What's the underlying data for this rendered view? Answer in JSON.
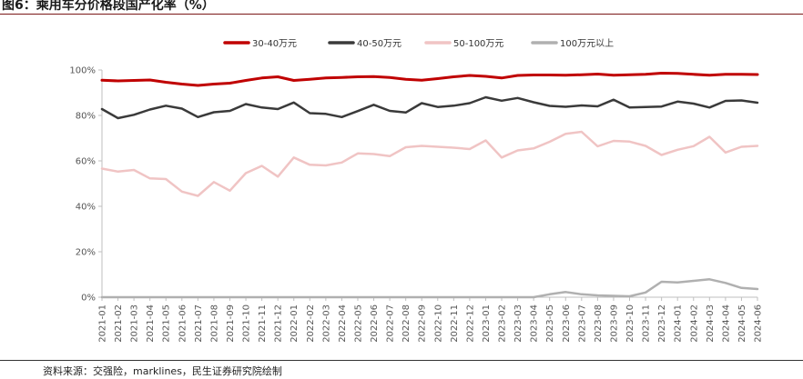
{
  "title": "图6：乘用车分价格段国产化率（%）",
  "source": "资料来源：交强险，marklines，民生证券研究院绘制",
  "chart_data": {
    "type": "line",
    "ylim": [
      0,
      100
    ],
    "yticks": [
      0,
      20,
      40,
      60,
      80,
      100
    ],
    "ytick_labels": [
      "0%",
      "20%",
      "40%",
      "60%",
      "80%",
      "100%"
    ],
    "legend_position": "top",
    "grid": false,
    "x": [
      "2021-01",
      "2021-02",
      "2021-03",
      "2021-04",
      "2021-05",
      "2021-06",
      "2021-07",
      "2021-08",
      "2021-09",
      "2021-10",
      "2021-11",
      "2021-12",
      "2022-01",
      "2022-02",
      "2022-03",
      "2022-04",
      "2022-05",
      "2022-06",
      "2022-07",
      "2022-08",
      "2022-09",
      "2022-10",
      "2022-11",
      "2022-12",
      "2023-01",
      "2023-02",
      "2023-03",
      "2023-04",
      "2023-05",
      "2023-06",
      "2023-07",
      "2023-08",
      "2023-09",
      "2023-10",
      "2023-11",
      "2023-12",
      "2024-01",
      "2024-02",
      "2024-03",
      "2024-04",
      "2024-05",
      "2024-06"
    ],
    "series": [
      {
        "name": "30-40万元",
        "color": "#c00000",
        "width": 3,
        "values": [
          95.5,
          95.2,
          95.4,
          95.6,
          94.6,
          93.8,
          93.2,
          93.8,
          94.2,
          95.4,
          96.5,
          97.0,
          95.4,
          95.9,
          96.5,
          96.7,
          97.0,
          97.1,
          96.7,
          95.9,
          95.5,
          96.2,
          97.0,
          97.6,
          97.2,
          96.5,
          97.6,
          97.8,
          97.8,
          97.7,
          97.9,
          98.2,
          97.7,
          97.9,
          98.1,
          98.6,
          98.5,
          98.1,
          97.7,
          98.1,
          98.1,
          98.0
        ]
      },
      {
        "name": "40-50万元",
        "color": "#3a3a3a",
        "width": 2.5,
        "values": [
          82.8,
          78.8,
          80.3,
          82.6,
          84.3,
          83.0,
          79.3,
          81.4,
          82.0,
          85.0,
          83.5,
          82.8,
          85.7,
          81.0,
          80.7,
          79.3,
          81.9,
          84.7,
          82.0,
          81.3,
          85.4,
          83.7,
          84.3,
          85.4,
          88.0,
          86.5,
          87.7,
          85.8,
          84.2,
          83.8,
          84.4,
          84.0,
          86.9,
          83.5,
          83.7,
          83.9,
          86.1,
          85.2,
          83.5,
          86.4,
          86.6,
          85.6
        ]
      },
      {
        "name": "50-100万元",
        "color": "#f0c4c4",
        "width": 2.5,
        "values": [
          56.6,
          55.3,
          56.0,
          52.3,
          52.0,
          46.5,
          44.6,
          50.7,
          46.9,
          54.6,
          57.8,
          53.1,
          61.5,
          58.3,
          58.0,
          59.3,
          63.3,
          63.0,
          62.1,
          66.0,
          66.6,
          66.2,
          65.8,
          65.2,
          69.0,
          61.5,
          64.6,
          65.5,
          68.4,
          71.9,
          72.8,
          66.4,
          68.8,
          68.5,
          66.6,
          62.6,
          64.9,
          66.5,
          70.6,
          63.7,
          66.2,
          66.6
        ]
      },
      {
        "name": "100万元以上",
        "color": "#b0b0b0",
        "width": 2.5,
        "values": [
          0,
          0,
          0,
          0,
          0,
          0,
          0,
          0,
          0,
          0,
          0,
          0,
          0,
          0,
          0,
          0,
          0,
          0,
          0,
          0,
          0,
          0,
          0,
          0,
          0,
          0,
          0,
          0,
          1.3,
          2.3,
          1.3,
          0.8,
          0.6,
          0.4,
          2.1,
          6.8,
          6.5,
          7.2,
          7.9,
          6.3,
          4.1,
          3.6
        ]
      }
    ]
  }
}
